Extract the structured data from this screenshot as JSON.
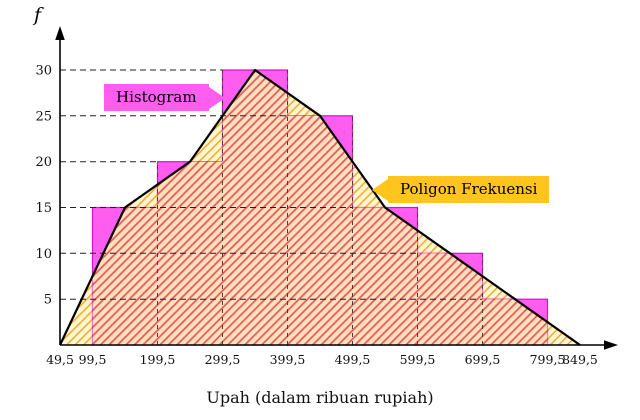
{
  "chart_data": {
    "type": "histogram",
    "title": "",
    "xlabel": "Upah (dalam ribuan rupiah)",
    "ylabel": "f",
    "x_min": 49.5,
    "x_max": 849.5,
    "ylim": [
      0,
      32
    ],
    "y_ticks": [
      5,
      10,
      15,
      20,
      25,
      30
    ],
    "x_ticks": [
      {
        "value": 49.5,
        "label": "49,5"
      },
      {
        "value": 99.5,
        "label": "99,5"
      },
      {
        "value": 199.5,
        "label": "199,5"
      },
      {
        "value": 299.5,
        "label": "299,5"
      },
      {
        "value": 399.5,
        "label": "399,5"
      },
      {
        "value": 499.5,
        "label": "499,5"
      },
      {
        "value": 599.5,
        "label": "599,5"
      },
      {
        "value": 699.5,
        "label": "699,5"
      },
      {
        "value": 799.5,
        "label": "799,5"
      },
      {
        "value": 849.5,
        "label": "849,5"
      }
    ],
    "bins": [
      {
        "x0": 99.5,
        "x1": 199.5,
        "f": 15
      },
      {
        "x0": 199.5,
        "x1": 299.5,
        "f": 20
      },
      {
        "x0": 299.5,
        "x1": 399.5,
        "f": 30
      },
      {
        "x0": 399.5,
        "x1": 499.5,
        "f": 25
      },
      {
        "x0": 499.5,
        "x1": 599.5,
        "f": 15
      },
      {
        "x0": 599.5,
        "x1": 699.5,
        "f": 10
      },
      {
        "x0": 699.5,
        "x1": 799.5,
        "f": 5
      }
    ],
    "polygon_points": [
      [
        49.5,
        0
      ],
      [
        149.5,
        15
      ],
      [
        249.5,
        20
      ],
      [
        349.5,
        30
      ],
      [
        449.5,
        25
      ],
      [
        549.5,
        15
      ],
      [
        649.5,
        10
      ],
      [
        749.5,
        5
      ],
      [
        849.5,
        0
      ]
    ],
    "grid": "dashed horizontal lines from y-axis to matching bar edge",
    "legend_position": "none",
    "annotations": {
      "histogram_label": {
        "text": "Histogram",
        "points_to": "histogram bars",
        "color": "#ff5cf0"
      },
      "polygon_label": {
        "text": "Poligon Frekuensi",
        "points_to": "frequency polygon line",
        "color": "#ffc41e"
      }
    },
    "colors": {
      "bar_fill": "#ff5cf0",
      "bar_edge": "#d913c4",
      "overlap_bg": "#ffe3b8",
      "overlap_hatch": "#ee4f64",
      "polygon_area_bg": "#fff6d2",
      "polygon_area_hatch": "#f2a41c",
      "polygon_line": "#000000",
      "axis": "#000000",
      "gridline": "#222222",
      "boundary_guide": "#44403a"
    }
  }
}
